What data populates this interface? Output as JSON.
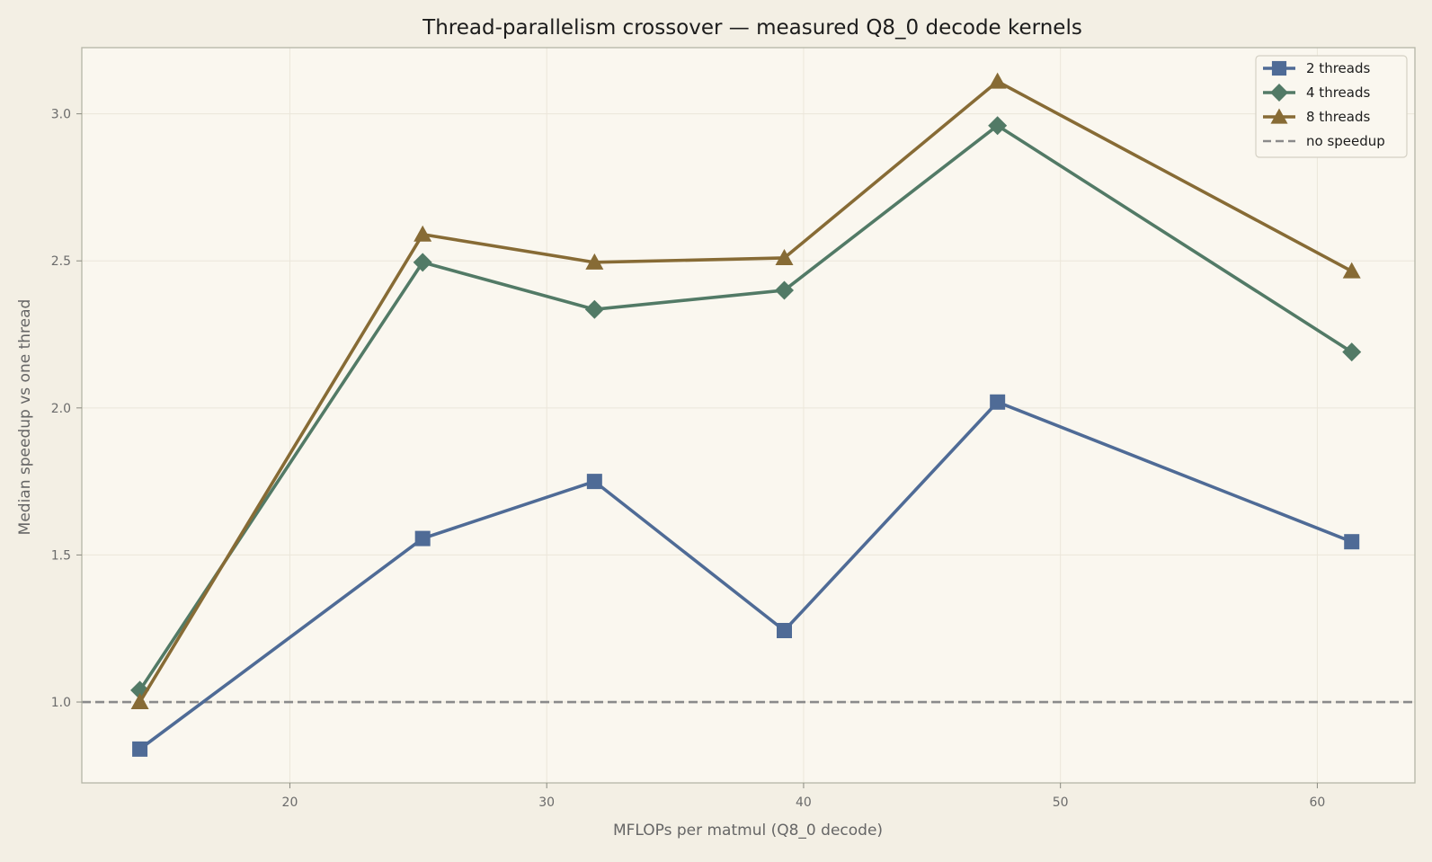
{
  "chart_data": {
    "type": "line",
    "title": "Thread-parallelism crossover — measured Q8_0 decode kernels",
    "xlabel": "MFLOPs per matmul (Q8_0 decode)",
    "ylabel": "Median speedup vs one thread",
    "xlim": [
      11.9,
      63.8
    ],
    "ylim": [
      0.725,
      3.225
    ],
    "x_ticks": [
      20,
      30,
      40,
      50,
      60
    ],
    "y_ticks": [
      1.0,
      1.5,
      2.0,
      2.5,
      3.0
    ],
    "x_tick_labels": [
      "20",
      "30",
      "40",
      "50",
      "60"
    ],
    "y_tick_labels": [
      "1.0",
      "1.5",
      "2.0",
      "2.5",
      "3.0"
    ],
    "grid": true,
    "legend_position": "top-right",
    "x": [
      14.16,
      25.17,
      31.86,
      39.25,
      47.55,
      61.34
    ],
    "series": [
      {
        "name": "2 threads",
        "marker": "square",
        "color": "#4f6b96",
        "values": [
          0.84,
          1.556,
          1.75,
          1.243,
          2.02,
          1.545
        ]
      },
      {
        "name": "4 threads",
        "marker": "diamond",
        "color": "#527a66",
        "values": [
          1.04,
          2.495,
          2.335,
          2.4,
          2.96,
          2.19
        ]
      },
      {
        "name": "8 threads",
        "marker": "triangle",
        "color": "#876b35",
        "values": [
          1.0,
          2.59,
          2.495,
          2.51,
          3.11,
          2.465
        ]
      }
    ],
    "reference_line": {
      "name": "no speedup",
      "y": 1.0,
      "color": "#8a8a8a",
      "style": "dashed"
    }
  },
  "colors": {
    "figure_background": "#f3efe4",
    "plot_background": "#faf7ef",
    "spine": "#b5b5a6",
    "grid": "#ebe6da"
  }
}
